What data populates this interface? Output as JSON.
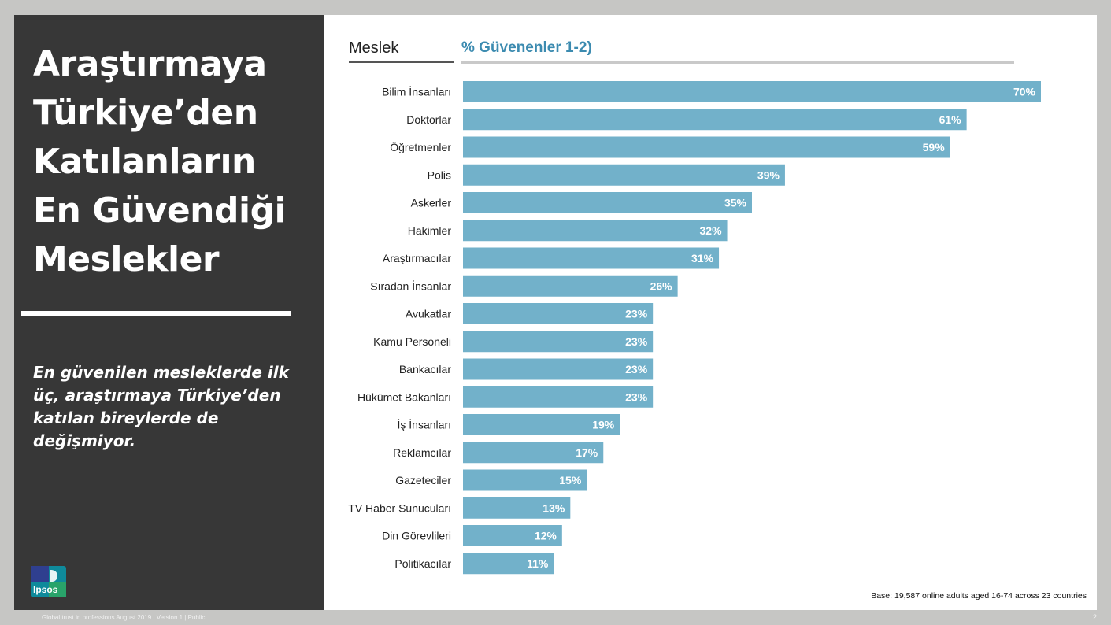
{
  "slide": {
    "title_lines": [
      "Araştırmaya",
      "Türkiye’den",
      "Katılanların",
      "En Güvendiği",
      "Meslekler"
    ],
    "subtitle_lines": [
      "En güvenilen mesleklerde ilk",
      "üç, araştırmaya Türkiye’den",
      "katılan bireylerde de",
      "değişmiyor."
    ],
    "logo_text": "Ipsos",
    "footnote": "Base: 19,587 online adults aged 16-74 across 23 countries",
    "footer": "Global trust in professions August 2019 | Version 1 | Public",
    "page_number": "2"
  },
  "colors": {
    "bar": "#72b1ca",
    "left_panel": "#373737",
    "background": "#c6c6c4",
    "header_accent": "#3c8bb0"
  },
  "chart_data": {
    "type": "bar",
    "orientation": "horizontal",
    "column_headers": [
      "Meslek",
      "% Güvenenler 1-2)"
    ],
    "categories": [
      "Bilim İnsanları",
      "Doktorlar",
      "Öğretmenler",
      "Polis",
      "Askerler",
      "Hakimler",
      "Araştırmacılar",
      "Sıradan İnsanlar",
      "Avukatlar",
      "Kamu Personeli",
      "Bankacılar",
      "Hükümet Bakanları",
      "İş İnsanları",
      "Reklamcılar",
      "Gazeteciler",
      "TV Haber Sunucuları",
      "Din Görevlileri",
      "Politikacılar"
    ],
    "values": [
      70,
      61,
      59,
      39,
      35,
      32,
      31,
      26,
      23,
      23,
      23,
      23,
      19,
      17,
      15,
      13,
      12,
      11
    ],
    "value_labels": [
      "70%",
      "61%",
      "59%",
      "39%",
      "35%",
      "32%",
      "31%",
      "26%",
      "23%",
      "23%",
      "23%",
      "23%",
      "19%",
      "17%",
      "15%",
      "13%",
      "12%",
      "11%"
    ],
    "xlim": [
      0,
      70
    ],
    "grid": false,
    "legend": "none"
  }
}
